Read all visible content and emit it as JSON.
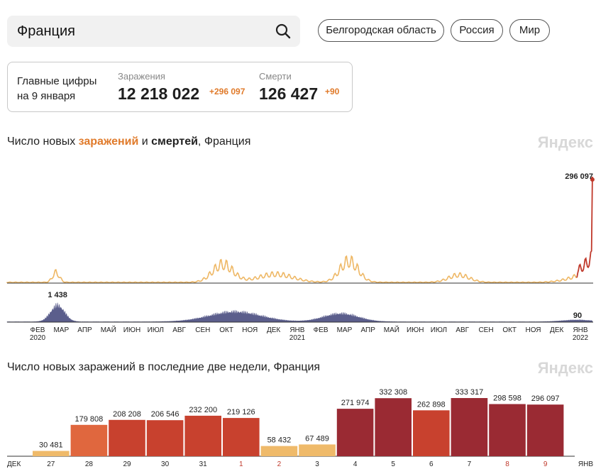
{
  "search": {
    "value": "Франция"
  },
  "region_chips": [
    "Белгородская область",
    "Россия",
    "Мир"
  ],
  "main_figures": {
    "caption_line1": "Главные цифры",
    "caption_line2": "на 9 января",
    "cases_label": "Заражения",
    "cases_value": "12 218 022",
    "cases_delta": "+296 097",
    "deaths_label": "Смерти",
    "deaths_value": "126 427",
    "deaths_delta": "+90"
  },
  "history_chart": {
    "title_prefix": "Число новых ",
    "title_cases": "заражений",
    "title_mid": " и ",
    "title_deaths": "смертей",
    "title_suffix": ", Франция",
    "watermark": "Яндекс",
    "peak_cases_label": "296 097",
    "peak_deaths_label": "1 438",
    "last_deaths_label": "90",
    "month_labels": [
      "ФЕВ",
      "МАР",
      "АПР",
      "МАЙ",
      "ИЮН",
      "ИЮЛ",
      "АВГ",
      "СЕН",
      "ОКТ",
      "НОЯ",
      "ДЕК",
      "ЯНВ",
      "ФЕВ",
      "МАР",
      "АПР",
      "МАЙ",
      "ИЮН",
      "ИЮЛ",
      "АВГ",
      "СЕН",
      "ОКТ",
      "НОЯ",
      "ДЕК",
      "ЯНВ"
    ],
    "year_labels": [
      "2020",
      "2021",
      "2022"
    ],
    "colors": {
      "cases": "#eeb764",
      "cases_recent": "#c0392b",
      "deaths": "#5b5e8c"
    }
  },
  "chart_data": {
    "type": "bar",
    "title": "Число новых заражений в последние две недели, Франция",
    "watermark": "Яндекс",
    "axis_start": "ДЕК",
    "axis_end": "ЯНВ",
    "categories": [
      "27",
      "28",
      "29",
      "30",
      "31",
      "1",
      "2",
      "3",
      "4",
      "5",
      "6",
      "7",
      "8",
      "9"
    ],
    "values": [
      30481,
      179808,
      208208,
      206546,
      232200,
      219126,
      58432,
      67489,
      271974,
      332308,
      262898,
      333317,
      298598,
      296097
    ],
    "value_labels": [
      "30 481",
      "179 808",
      "208 208",
      "206 546",
      "232 200",
      "219 126",
      "58 432",
      "67 489",
      "271 974",
      "332 308",
      "262 898",
      "333 317",
      "298 598",
      "296 097"
    ],
    "weekend_days": [
      "1",
      "2",
      "8",
      "9"
    ],
    "colors": {
      "low": "#efba6a",
      "mid": "#e0673e",
      "high": "#c8412e",
      "top": "#9a2a33",
      "label_weekend": "#c0392b",
      "label": "#222222"
    }
  }
}
